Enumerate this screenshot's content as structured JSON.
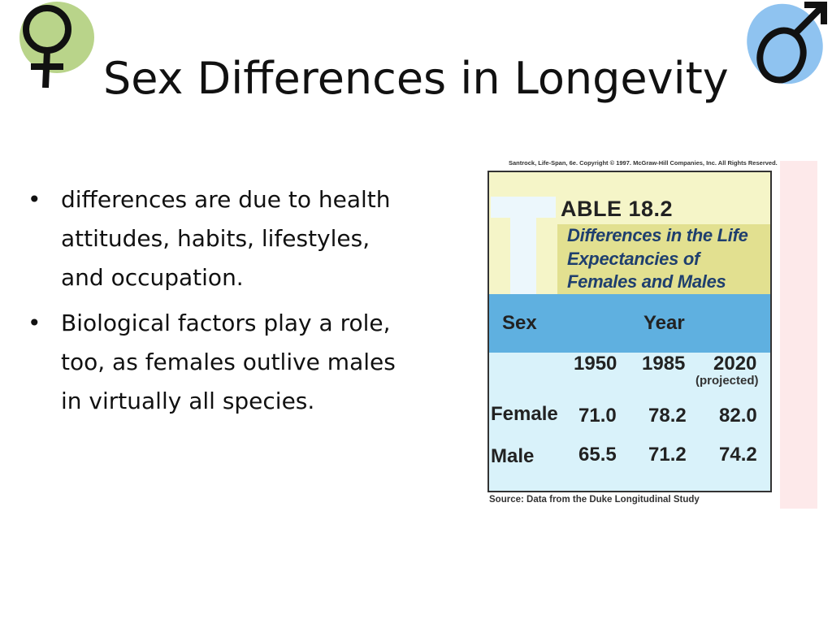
{
  "slide": {
    "title": "Sex Differences in Longevity",
    "bullets": [
      "differences are due to health attitudes, habits, lifestyles, and occupation.",
      "Biological factors play a role, too, as females outlive males in virtually all species."
    ],
    "symbols": {
      "female": "female-symbol-icon",
      "male": "male-symbol-icon"
    }
  },
  "table": {
    "credit": "Santrock, Life-Span, 6e. Copyright © 1997. McGraw-Hill Companies, Inc. All Rights Reserved.",
    "number": "ABLE  18.2",
    "caption_lines": [
      "Differences in the Life",
      "Expectancies of",
      "Females and Males"
    ],
    "header_sex": "Sex",
    "header_year": "Year",
    "years": [
      "1950",
      "1985",
      "2020"
    ],
    "projected_note": "(projected)",
    "rows": [
      {
        "label": "Female",
        "values": [
          "71.0",
          "78.2",
          "82.0"
        ]
      },
      {
        "label": "Male",
        "values": [
          "65.5",
          "71.2",
          "74.2"
        ]
      }
    ],
    "source": "Source: Data from the Duke Longitudinal Study"
  },
  "colors": {
    "female_blob": "#b9d48a",
    "male_blob": "#8fc3f0",
    "table_header": "#5fb0e0",
    "table_body": "#d9f2fa",
    "caption_band": "#e2e090"
  }
}
